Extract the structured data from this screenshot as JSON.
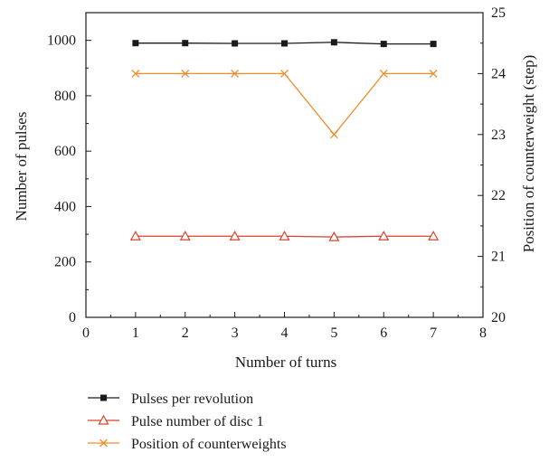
{
  "chart_data": {
    "type": "line",
    "title": "",
    "x": [
      1,
      2,
      3,
      4,
      5,
      6,
      7
    ],
    "xlabel": "Number of turns",
    "xlim": [
      0,
      8
    ],
    "xticks": [
      0,
      1,
      2,
      3,
      4,
      5,
      6,
      7,
      8
    ],
    "ylabel": "Number of pulses",
    "ylim": [
      0,
      1100
    ],
    "yticks": [
      0,
      200,
      400,
      600,
      800,
      1000
    ],
    "y2label": "Position of counterweight (step)",
    "y2lim": [
      20,
      25
    ],
    "y2ticks": [
      20,
      21,
      22,
      23,
      24,
      25
    ],
    "grid": false,
    "legend_position": "bottom-left, below the plot",
    "series": [
      {
        "name": "Pulses per revolution",
        "axis": "left",
        "marker": "filled-square",
        "color": "#1a1a1a",
        "values": [
          990,
          990,
          989,
          989,
          993,
          987,
          987
        ]
      },
      {
        "name": "Pulse number of disc 1",
        "axis": "left",
        "marker": "open-triangle",
        "color": "#d9432b",
        "values": [
          293,
          293,
          293,
          293,
          290,
          293,
          293
        ]
      },
      {
        "name": "Position of counterweights",
        "axis": "right",
        "marker": "x",
        "color": "#f08c28",
        "values": [
          24,
          24,
          24,
          24,
          23,
          24,
          24
        ]
      }
    ]
  }
}
